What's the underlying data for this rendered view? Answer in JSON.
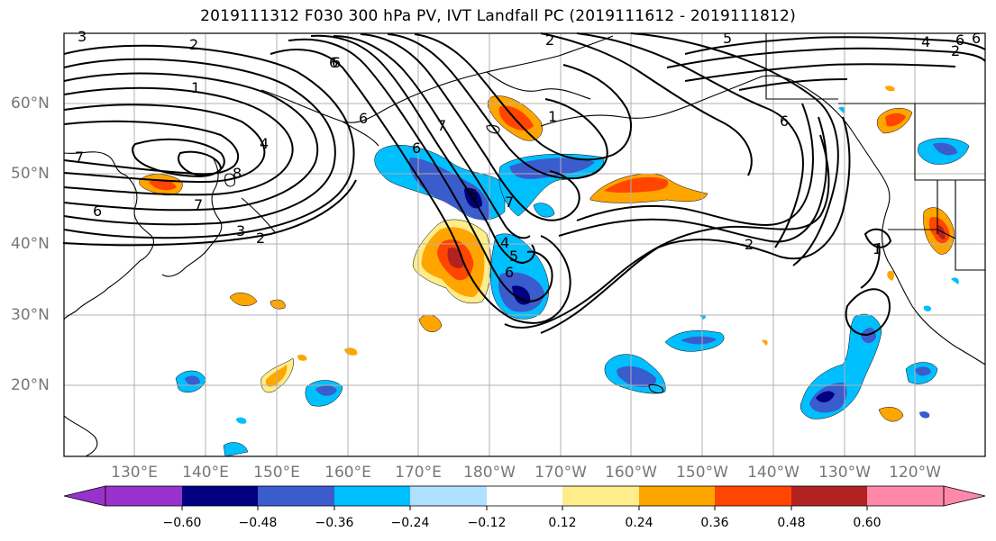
{
  "title": "2019111312 F030 300 hPa PV, IVT Landfall PC (2019111612 - 2019111812)",
  "lat_labels": [
    "60°N",
    "50°N",
    "40°N",
    "30°N",
    "20°N"
  ],
  "lon_labels": [
    "130°E",
    "140°E",
    "150°E",
    "160°E",
    "170°E",
    "180°W",
    "170°W",
    "160°W",
    "150°W",
    "140°W",
    "130°W",
    "120°W"
  ],
  "colorbar": {
    "tick_labels": [
      "−0.60",
      "−0.48",
      "−0.36",
      "−0.24",
      "−0.12",
      "0.12",
      "0.24",
      "0.36",
      "0.48",
      "0.60"
    ],
    "colors": [
      "#9932cc",
      "#000080",
      "#3a5ccc",
      "#00bfff",
      "#b0e0ff",
      "#ffffff",
      "#ffec8b",
      "#ffa500",
      "#ff4500",
      "#b22222",
      "#ff88aa"
    ]
  },
  "contour_labels": [
    "3",
    "2",
    "1",
    "6",
    "4",
    "7",
    "5",
    "6",
    "8",
    "6",
    "7",
    "3",
    "2",
    "5",
    "4",
    "6",
    "7",
    "1",
    "2",
    "6",
    "5",
    "4",
    "2",
    "6",
    "1",
    "6",
    "2",
    "7",
    "6",
    "6"
  ],
  "colors": {
    "pos_light": "#ffec8b",
    "pos_mid": "#ffa500",
    "pos_strong": "#ff4500",
    "pos_max": "#b22222",
    "neg_light": "#b0e0ff",
    "neg_mid": "#00bfff",
    "neg_strong": "#3a5ccc",
    "neg_max": "#000080"
  }
}
